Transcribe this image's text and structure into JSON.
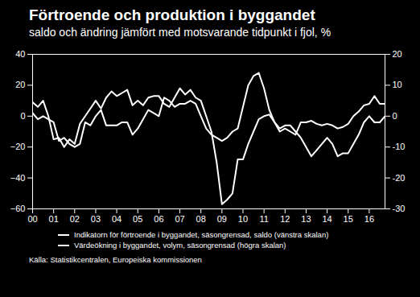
{
  "chart_data": {
    "type": "line",
    "title": "Förtroende och produktion i byggandet",
    "subtitle": "saldo och ändring jämfört med motsvarande tidpunkt i fjol, %",
    "source": "Källa: Statistikcentralen, Europeiska kommissionen",
    "x": [
      2000,
      2000.25,
      2000.5,
      2000.75,
      2001,
      2001.25,
      2001.5,
      2001.75,
      2002,
      2002.25,
      2002.5,
      2002.75,
      2003,
      2003.25,
      2003.5,
      2003.75,
      2004,
      2004.25,
      2004.5,
      2004.75,
      2005,
      2005.25,
      2005.5,
      2005.75,
      2006,
      2006.25,
      2006.5,
      2006.75,
      2007,
      2007.25,
      2007.5,
      2007.75,
      2008,
      2008.25,
      2008.5,
      2008.75,
      2009,
      2009.25,
      2009.5,
      2009.75,
      2010,
      2010.25,
      2010.5,
      2010.75,
      2011,
      2011.25,
      2011.5,
      2011.75,
      2012,
      2012.25,
      2012.5,
      2012.75,
      2013,
      2013.25,
      2013.5,
      2013.75,
      2014,
      2014.25,
      2014.5,
      2014.75,
      2015,
      2015.25,
      2015.5,
      2015.75,
      2016,
      2016.25,
      2016.5,
      2016.75
    ],
    "xlim": [
      2000,
      2016.75
    ],
    "xticks": [
      {
        "value": 2000,
        "label": "00"
      },
      {
        "value": 2001,
        "label": "01"
      },
      {
        "value": 2002,
        "label": "02"
      },
      {
        "value": 2003,
        "label": "03"
      },
      {
        "value": 2004,
        "label": "04"
      },
      {
        "value": 2005,
        "label": "05"
      },
      {
        "value": 2006,
        "label": "06"
      },
      {
        "value": 2007,
        "label": "07"
      },
      {
        "value": 2008,
        "label": "08"
      },
      {
        "value": 2009,
        "label": "09"
      },
      {
        "value": 2010,
        "label": "10"
      },
      {
        "value": 2011,
        "label": "11"
      },
      {
        "value": 2012,
        "label": "12"
      },
      {
        "value": 2013,
        "label": "13"
      },
      {
        "value": 2014,
        "label": "14"
      },
      {
        "value": 2015,
        "label": "15"
      },
      {
        "value": 2016,
        "label": "16"
      }
    ],
    "ylim": [
      -60,
      40
    ],
    "yticks": [
      -60,
      -40,
      -20,
      0,
      20,
      40
    ],
    "y2lim": [
      -30,
      20
    ],
    "y2ticks": [
      -30,
      -20,
      -10,
      0,
      10,
      20
    ],
    "grid": false,
    "series": [
      {
        "name": "Indikatorn för förtroende i byggandet, säsongrensad, saldo (vänstra skalan)",
        "color": "#ffffff",
        "axis": "y",
        "values": [
          9,
          6,
          10,
          0,
          -15,
          -14,
          -20,
          -15,
          -18,
          -5,
          0,
          5,
          10,
          5,
          12,
          16,
          13,
          15,
          17,
          7,
          10,
          7,
          12,
          13,
          13,
          8,
          6,
          12,
          18,
          14,
          17,
          12,
          10,
          0,
          -10,
          -30,
          -57,
          -54,
          -50,
          -28,
          -28,
          -18,
          -10,
          -2,
          0,
          1,
          -4,
          -10,
          -8,
          -10,
          -12,
          -4,
          -4,
          -3,
          -5,
          -6,
          -5,
          -6,
          -8,
          -7,
          -5,
          0,
          3,
          7,
          8,
          13,
          8,
          8
        ]
      },
      {
        "name": "Värdeökning i byggandet, volym, säsongrensad (högra skalan)",
        "color": "#ffffff",
        "axis": "y2",
        "values": [
          1,
          -1,
          0,
          -1,
          -2,
          -8,
          -7,
          -9,
          -10,
          -9,
          -2,
          -3,
          0,
          2,
          -3,
          -3,
          -3,
          -2,
          -2,
          -6,
          -4,
          -1,
          2,
          1,
          0,
          6,
          5,
          3,
          4,
          4,
          5,
          4,
          0,
          -4,
          -6,
          -7,
          -8,
          -7,
          -5,
          -4,
          3,
          10,
          13,
          14,
          9,
          2,
          -2,
          -4,
          -3,
          -3,
          -5,
          -7,
          -10,
          -13,
          -11,
          -9,
          -7,
          -9,
          -13,
          -12,
          -12,
          -9,
          -6,
          -2,
          0,
          -2,
          -2,
          0
        ]
      }
    ]
  }
}
